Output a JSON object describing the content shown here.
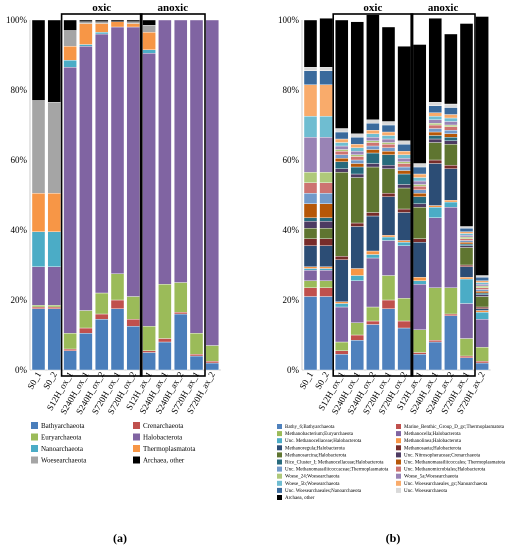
{
  "colors": {
    "Bathyarchaeota": "#4a7ebb",
    "Crenarchaeota": "#c0504d",
    "Euryarchaeota": "#9bbb59",
    "Halobacterota": "#8064a2",
    "Nanoarchaeota": "#4bacc6",
    "Thermoplasmatota": "#f79646",
    "Woesearchaeota": "#a5a5a5",
    "Archaea, other": "#000000"
  },
  "panel_labels": [
    "(a)",
    "(b)"
  ],
  "chart_data": [
    {
      "type": "bar",
      "stacked": true,
      "percent": true,
      "group_labels": [
        "oxic",
        "anoxic"
      ],
      "groups": [
        [
          2,
          6
        ],
        [
          7,
          10
        ]
      ],
      "categories": [
        "S0_1",
        "S0_2",
        "S12H_ox_1",
        "S240H_ox_1",
        "S240H_ox_2",
        "S720H_ox_1",
        "S720H_ox_2",
        "S12H_ax_1",
        "S240H_ax_1",
        "S240H_ax_2",
        "S720H_ax_1",
        "S720H_ax_2"
      ],
      "ylim": [
        0,
        100
      ],
      "yticks": [
        "0%",
        "20%",
        "40%",
        "60%",
        "80%",
        "100%"
      ],
      "legend_position": "bottom",
      "series": [
        {
          "name": "Bathyarchaeota",
          "color": "#4a7ebb",
          "values": [
            17.5,
            17.5,
            5.5,
            10.5,
            14.5,
            17.5,
            12.5,
            5,
            8,
            16,
            4,
            2
          ]
        },
        {
          "name": "Crenarchaeota",
          "color": "#c0504d",
          "values": [
            0.5,
            0.5,
            0.5,
            1.5,
            1.5,
            2.5,
            2,
            0.5,
            1,
            0.5,
            0.5,
            0.5
          ]
        },
        {
          "name": "Euryarchaeota",
          "color": "#9bbb59",
          "values": [
            0.5,
            0.5,
            4.5,
            5,
            6,
            7.5,
            6.5,
            7,
            15.5,
            8.5,
            6,
            4.5
          ]
        },
        {
          "name": "Halobacterota",
          "color": "#8064a2",
          "values": [
            11,
            11,
            76,
            75.5,
            74,
            70.5,
            77,
            78,
            75.5,
            75,
            89.5,
            93
          ]
        },
        {
          "name": "Nanoarchaeota",
          "color": "#4bacc6",
          "values": [
            10,
            10,
            2,
            0.5,
            0.5,
            0,
            0,
            1,
            0,
            0,
            0,
            0
          ]
        },
        {
          "name": "Thermoplasmatota",
          "color": "#f79646",
          "values": [
            11,
            11,
            4,
            6,
            2.5,
            1.5,
            1,
            5,
            0,
            0,
            0,
            0
          ]
        },
        {
          "name": "Woesearchaeota",
          "color": "#a5a5a5",
          "values": [
            26.5,
            26,
            4.5,
            0.5,
            0.5,
            0,
            0.5,
            2,
            0,
            0,
            0,
            0
          ]
        },
        {
          "name": "Archaea, other",
          "color": "#000000",
          "values": [
            23,
            23.5,
            3,
            0.5,
            0.5,
            0.5,
            0.5,
            1.5,
            0,
            0,
            0,
            0
          ]
        }
      ]
    },
    {
      "type": "bar",
      "stacked": true,
      "percent": true,
      "group_labels": [
        "oxic",
        "anoxic"
      ],
      "groups": [
        [
          2,
          6
        ],
        [
          7,
          10
        ]
      ],
      "categories": [
        "S0_1",
        "S0_2",
        "S12H_ox_1",
        "S240H_ox_1",
        "S240H_ox_2",
        "S720H_ox_1",
        "S720H_ox_2",
        "S12H_ax_1",
        "S240H_ax_1",
        "S240H_ax_2",
        "S720H_ax_1",
        "S720H_ax_2"
      ],
      "ylim": [
        0,
        100
      ],
      "yticks": [
        "0%",
        "20%",
        "40%",
        "60%",
        "80%",
        "100%"
      ],
      "legend_position": "bottom",
      "series": [
        {
          "name": "Bathy_6;Bathyarchaeota",
          "color": "#4f81bd",
          "values": [
            21,
            21,
            4.5,
            8.5,
            13,
            17.5,
            12,
            4.5,
            8,
            15.5,
            3.5,
            2
          ]
        },
        {
          "name": "Marine_Benthic_Group_D_gc;Thermoplasmatota",
          "color": "#c0504d",
          "values": [
            2.5,
            2.5,
            1,
            1.5,
            1,
            2.5,
            2,
            0.5,
            0.5,
            0.5,
            0.5,
            0.5
          ]
        },
        {
          "name": "Methanobacterium;Euryarchaeota",
          "color": "#9bbb59",
          "values": [
            2,
            2,
            2.5,
            3.5,
            4,
            7,
            6.5,
            6.5,
            15,
            7.5,
            5,
            4
          ]
        },
        {
          "name": "Methanocella;Halobacterota",
          "color": "#8064a2",
          "values": [
            3,
            3,
            10,
            12,
            14,
            10,
            15,
            13,
            20,
            23,
            10,
            8
          ]
        },
        {
          "name": "Unc. Methanocellaceae;Halobacterota",
          "color": "#4bacc6",
          "values": [
            0.5,
            0.5,
            1,
            1.5,
            1,
            1,
            1,
            1,
            3,
            1.5,
            7,
            2
          ]
        },
        {
          "name": "Methanolinea;Halobacterota",
          "color": "#f79646",
          "values": [
            0.5,
            0.5,
            0.5,
            2,
            1,
            0.5,
            0.5,
            1,
            0.5,
            0.5,
            0.5,
            0.5
          ]
        },
        {
          "name": "Methanoregula;Halobacterota",
          "color": "#2c4d75",
          "values": [
            6,
            6,
            12,
            12,
            10,
            11,
            8,
            10,
            12,
            9,
            3,
            0.5
          ]
        },
        {
          "name": "Methanosaeta;Halobacterota",
          "color": "#772c2a",
          "values": [
            2,
            2,
            1,
            1,
            1,
            1,
            1,
            1,
            1,
            1,
            0.5,
            0.5
          ]
        },
        {
          "name": "Methanosarcina;Halobacterota",
          "color": "#5f7530",
          "values": [
            3,
            3,
            24,
            13,
            13,
            7,
            6,
            9,
            5,
            6,
            5,
            3
          ]
        },
        {
          "name": "Unc. Nitrosopheraceae;Crenarchaeota",
          "color": "#4d3b62",
          "values": [
            2,
            2,
            1,
            1,
            1,
            1,
            1,
            1,
            1,
            1,
            0.5,
            0.5
          ]
        },
        {
          "name": "Rice_Cluster_I; Methanocellaceae;Halobacterota",
          "color": "#276a7c",
          "values": [
            1,
            1,
            2,
            2,
            3,
            3,
            3,
            2,
            1,
            1,
            0.5,
            0.5
          ]
        },
        {
          "name": "Unc. Methanomassiliicoccales; Thermoplasmatota",
          "color": "#b65708",
          "values": [
            4,
            4,
            1,
            1,
            1,
            1,
            1,
            1,
            1,
            1,
            0.5,
            0.5
          ]
        },
        {
          "name": "Unc. Methanomassiliicoccaceae;Thermoplasmatota",
          "color": "#729aca",
          "values": [
            3,
            3,
            1,
            1,
            1,
            1,
            1,
            1,
            1,
            1,
            0.5,
            0.5
          ]
        },
        {
          "name": "Unc. Methanomicrobiales;Halobacterota",
          "color": "#cd7371",
          "values": [
            3,
            3,
            1,
            1,
            1,
            1,
            1,
            1,
            1,
            1,
            0.5,
            0.5
          ]
        },
        {
          "name": "Woese_24;Woesearchaeota",
          "color": "#afc97a",
          "values": [
            3,
            3,
            0.5,
            0.5,
            0.5,
            0.5,
            0.5,
            0.5,
            0.5,
            0.5,
            0.5,
            0.5
          ]
        },
        {
          "name": "Woese_5a;Woesearchaeota",
          "color": "#9983b5",
          "values": [
            10,
            10,
            1,
            1,
            1,
            1,
            1,
            1,
            1,
            1,
            0.5,
            0.5
          ]
        },
        {
          "name": "Woese_5b;Woesearchaeota",
          "color": "#6fbdd1",
          "values": [
            6,
            6,
            1,
            1,
            1,
            1,
            1,
            1,
            1,
            1,
            0.5,
            0.5
          ]
        },
        {
          "name": "Unc. Woesearchaeales_gc;Nanoarchaeota",
          "color": "#f9ab6b",
          "values": [
            9,
            9,
            1,
            1,
            1,
            1,
            1,
            1,
            1,
            1,
            0.5,
            0.5
          ]
        },
        {
          "name": "Unc. Woesearchaeales;Nanoarchaeota",
          "color": "#3a6a9c",
          "values": [
            4,
            4,
            2,
            2,
            2,
            2,
            2,
            2,
            2,
            2,
            1,
            1
          ]
        },
        {
          "name": "Unc. Woesearchaeota",
          "color": "#d9d9d9",
          "values": [
            1,
            1,
            1,
            1,
            1,
            1,
            1,
            1,
            1,
            1,
            0.5,
            0.5
          ]
        },
        {
          "name": "Archaea, other",
          "color": "#000000",
          "values": [
            13.5,
            14,
            31,
            32,
            30,
            27,
            27,
            34,
            24,
            20,
            58,
            74
          ]
        }
      ]
    }
  ]
}
